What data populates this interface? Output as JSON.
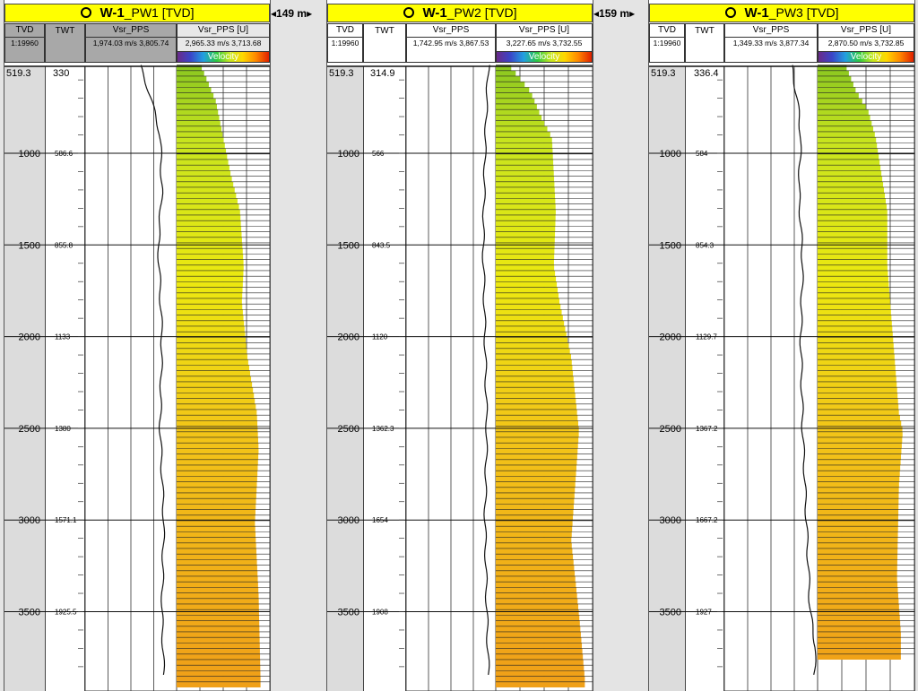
{
  "spacings": [
    "149 m",
    "159 m"
  ],
  "panels": [
    {
      "well": "W-1",
      "suffix": "_PW1 [TVD]",
      "tvd_header": "TVD",
      "scale": "1:19960",
      "twt_header": "TWT",
      "curve_name": "Vsr_PPS",
      "curve_range": "1,974.03 m/s 3,805.74",
      "fill_name": "Vsr_PPS [U]",
      "fill_range": "2,965.33 m/s 3,713.68",
      "color_label": "Velocity",
      "top_tvd": "519.3",
      "top_twt": "330",
      "tvd_ticks": [
        "1000",
        "1500",
        "2000",
        "2500",
        "3000",
        "3500"
      ],
      "twt_ticks": [
        "586.6",
        "855.8",
        "1133",
        "1380",
        "1571.1",
        "1925.5"
      ]
    },
    {
      "well": "W-1",
      "suffix": "_PW2 [TVD]",
      "tvd_header": "TVD",
      "scale": "1:19960",
      "twt_header": "TWT",
      "curve_name": "Vsr_PPS",
      "curve_range": "1,742.95 m/s 3,867.53",
      "fill_name": "Vsr_PPS [U]",
      "fill_range": "3,227.65 m/s 3,732.55",
      "color_label": "Velocity",
      "top_tvd": "519.3",
      "top_twt": "314.9",
      "tvd_ticks": [
        "1000",
        "1500",
        "2000",
        "2500",
        "3000",
        "3500"
      ],
      "twt_ticks": [
        "566",
        "843.5",
        "1120",
        "1362.3",
        "1654",
        "1908"
      ]
    },
    {
      "well": "W-1",
      "suffix": "_PW3 [TVD]",
      "tvd_header": "TVD",
      "scale": "1:19960",
      "twt_header": "TWT",
      "curve_name": "Vsr_PPS",
      "curve_range": "1,349.33 m/s 3,877.34",
      "fill_name": "Vsr_PPS [U]",
      "fill_range": "2,870.50 m/s 3,732.85",
      "color_label": "Velocity",
      "top_tvd": "519.3",
      "top_twt": "336.4",
      "tvd_ticks": [
        "1000",
        "1500",
        "2000",
        "2500",
        "3000",
        "3500"
      ],
      "twt_ticks": [
        "584",
        "854.3",
        "1129.7",
        "1367.2",
        "1667.2",
        "1927"
      ]
    }
  ],
  "colors": {
    "title_bg": "#ffff00",
    "green_top": "#8cc820",
    "yellow": "#ecec10",
    "orange": "#f0a018"
  }
}
